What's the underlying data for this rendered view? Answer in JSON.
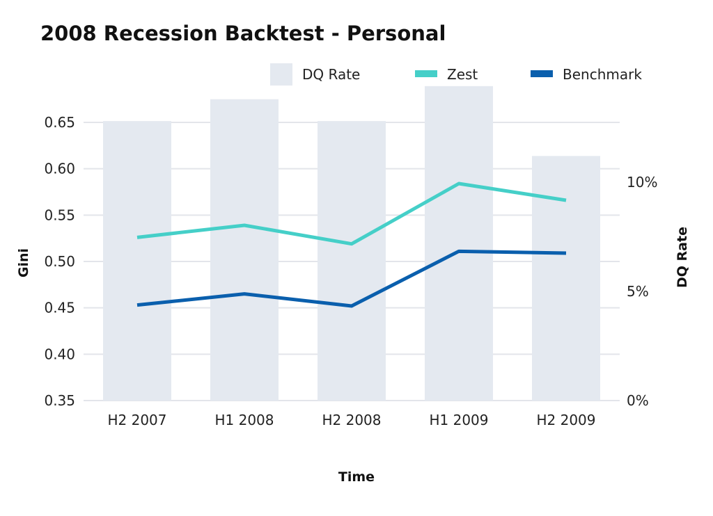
{
  "chart_data": {
    "type": "bar",
    "title": "2008 Recession Backtest - Personal",
    "xlabel": "Time",
    "ylabel": "Gini",
    "y2label": "DQ Rate",
    "categories": [
      "H2 2007",
      "H1 2008",
      "H2 2008",
      "H1 2009",
      "H2 2009"
    ],
    "ylim": [
      0.35,
      0.65
    ],
    "yticks": [
      0.35,
      0.4,
      0.45,
      0.5,
      0.55,
      0.6,
      0.65
    ],
    "ytick_labels": [
      "0.35",
      "0.40",
      "0.45",
      "0.50",
      "0.55",
      "0.60",
      "0.65"
    ],
    "y2ticks": [
      0,
      5,
      10
    ],
    "y2tick_labels": [
      "0%",
      "5%",
      "10%"
    ],
    "grid": true,
    "legend_position": "top-right",
    "series": [
      {
        "name": "DQ Rate",
        "kind": "bar",
        "axis": "right",
        "unit": "%",
        "color": "#e4e9f0",
        "values": [
          12.8,
          13.8,
          12.8,
          14.4,
          11.2
        ]
      },
      {
        "name": "Zest",
        "kind": "line",
        "axis": "left",
        "color": "#45cfc8",
        "values": [
          0.526,
          0.539,
          0.519,
          0.584,
          0.566
        ]
      },
      {
        "name": "Benchmark",
        "kind": "line",
        "axis": "left",
        "color": "#0a5fad",
        "values": [
          0.453,
          0.465,
          0.452,
          0.511,
          0.509
        ]
      }
    ]
  }
}
